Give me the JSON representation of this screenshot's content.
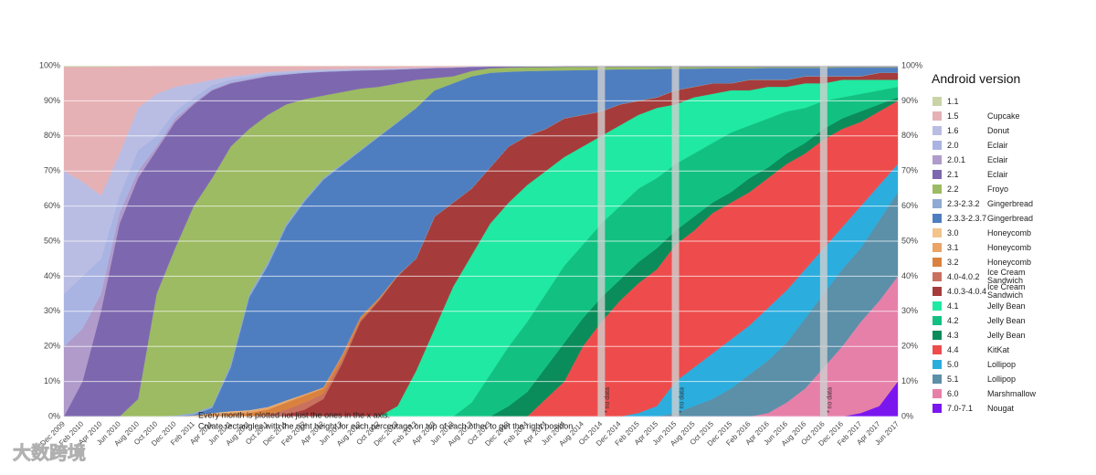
{
  "chart_data": {
    "type": "stacked_area",
    "legend_title": "Android version",
    "grid": true,
    "ylim": [
      0,
      100
    ],
    "yticks": [
      {
        "value": 0,
        "label": "0%"
      },
      {
        "value": 10,
        "label": "10%"
      },
      {
        "value": 20,
        "label": "20%"
      },
      {
        "value": 30,
        "label": "30%"
      },
      {
        "value": 40,
        "label": "40%"
      },
      {
        "value": 50,
        "label": "50%"
      },
      {
        "value": 60,
        "label": "60%"
      },
      {
        "value": 70,
        "label": "70%"
      },
      {
        "value": 80,
        "label": "80%"
      },
      {
        "value": 90,
        "label": "90%"
      },
      {
        "value": 100,
        "label": "100%"
      }
    ],
    "categories": [
      "Dec 2009",
      "Feb 2010",
      "Apr 2010",
      "Jun 2010",
      "Aug 2010",
      "Oct 2010",
      "Dec 2010",
      "Feb 2011",
      "Apr 2011",
      "Jun 2011",
      "Aug 2011",
      "Oct 2011",
      "Dec 2011",
      "Feb 2012",
      "Apr 2012",
      "Jun 2012",
      "Aug 2012",
      "Oct 2012",
      "Dec 2012",
      "Feb 2013",
      "Apr 2013",
      "Jun 2013",
      "Aug 2013",
      "Oct 2013",
      "Dec 2013",
      "Feb 2014",
      "Apr 2014",
      "Jun 2014",
      "Aug 2014",
      "Oct 2014",
      "Dec 2014",
      "Feb 2015",
      "Apr 2015",
      "Jun 2015",
      "Aug 2015",
      "Oct 2015",
      "Dec 2015",
      "Feb 2016",
      "Apr 2016",
      "Jun 2016",
      "Aug 2016",
      "Oct 2016",
      "Dec 2016",
      "Feb 2017",
      "Apr 2017",
      "Jun 2017"
    ],
    "no_data": {
      "label": "* no data",
      "categories": [
        "Oct 2014",
        "Jun 2015",
        "Oct 2016"
      ]
    },
    "notes": [
      "Every month is plotted not just the ones in the x axis.",
      "Create rectangles with the right height for each percentage on top of each other to get the right position"
    ],
    "watermark": "大数跨境",
    "series": [
      {
        "name": "1.1",
        "color": "#c9d3a6",
        "values": [
          0.3,
          0.3,
          0.3,
          0.2,
          0.1,
          0,
          0,
          0,
          0,
          0,
          0,
          0,
          0,
          0,
          0,
          0,
          0,
          0,
          0,
          0,
          0,
          0,
          0,
          0,
          0,
          0,
          0,
          0,
          0,
          0,
          0,
          0,
          0,
          0,
          0,
          0,
          0,
          0,
          0,
          0,
          0,
          0,
          0,
          0,
          0,
          0
        ]
      },
      {
        "name": "1.5",
        "codename": "Cupcake",
        "color": "#e6b1b5",
        "values": [
          29.7,
          32.7,
          36.7,
          24.8,
          11.9,
          8,
          6,
          5,
          4,
          3,
          2.5,
          1.8,
          1.5,
          1.2,
          1,
          0.9,
          0.8,
          0.8,
          0.7,
          0.6,
          0.5,
          0.4,
          0.2,
          0.1,
          0.1,
          0,
          0,
          0,
          0,
          0,
          0,
          0,
          0,
          0,
          0,
          0,
          0,
          0,
          0,
          0,
          0,
          0,
          0,
          0,
          0,
          0
        ]
      },
      {
        "name": "1.6",
        "codename": "Donut",
        "color": "#b9bde3",
        "values": [
          35,
          27,
          18,
          12,
          12,
          12,
          7,
          4,
          1.5,
          1,
          0.7,
          0.6,
          0.5,
          0.5,
          0.5,
          0.4,
          0.4,
          0.3,
          0.3,
          0.2,
          0.1,
          0.1,
          0.1,
          0.1,
          0.1,
          0.1,
          0.1,
          0.1,
          0.1,
          0.1,
          0.1,
          0.1,
          0.1,
          0.1,
          0.1,
          0.1,
          0.1,
          0.1,
          0.1,
          0.1,
          0.1,
          0.1,
          0.1,
          0.1,
          0.1,
          0.1
        ]
      },
      {
        "name": "2.0",
        "codename": "Eclair",
        "color": "#aab4e2",
        "values": [
          15,
          15,
          10,
          5,
          6,
          3,
          2,
          1.5,
          1.2,
          0.8,
          0.6,
          0.5,
          0.4,
          0.3,
          0.2,
          0.2,
          0.1,
          0.1,
          0,
          0,
          0,
          0,
          0,
          0,
          0,
          0,
          0,
          0,
          0,
          0,
          0,
          0,
          0,
          0,
          0,
          0,
          0,
          0,
          0,
          0,
          0,
          0,
          0,
          0,
          0,
          0
        ]
      },
      {
        "name": "2.0.1",
        "codename": "Eclair",
        "color": "#b09bcb",
        "values": [
          20,
          15,
          5,
          3,
          2,
          1,
          1,
          0.5,
          0.3,
          0.2,
          0.2,
          0.1,
          0.1,
          0,
          0,
          0,
          0,
          0,
          0,
          0,
          0,
          0,
          0,
          0,
          0,
          0,
          0,
          0,
          0,
          0,
          0,
          0,
          0,
          0,
          0,
          0,
          0,
          0,
          0,
          0,
          0,
          0,
          0,
          0,
          0,
          0
        ]
      },
      {
        "name": "2.1",
        "codename": "Eclair",
        "color": "#7d68af",
        "values": [
          0,
          10,
          30,
          55,
          63,
          41,
          36,
          29,
          25,
          18,
          14,
          11,
          8.5,
          7.5,
          6.8,
          6,
          5.2,
          4.8,
          4,
          3.2,
          2.9,
          2.5,
          1.2,
          0.5,
          0.3,
          0.2,
          0.2,
          0.2,
          0.2,
          0.2,
          0.2,
          0.2,
          0.2,
          0.2,
          0.2,
          0.2,
          0.2,
          0.2,
          0.2,
          0.2,
          0.2,
          0.2,
          0.2,
          0.2,
          0.2,
          0.2
        ]
      },
      {
        "name": "2.2",
        "codename": "Froyo",
        "color": "#9cbb62",
        "values": [
          0,
          0,
          0,
          0,
          5,
          35,
          47.7,
          59,
          65,
          62,
          47,
          42,
          34,
          28.5,
          23.5,
          20.5,
          17.5,
          14,
          11,
          8,
          3.5,
          2,
          1.5,
          1.3,
          1.2,
          1.1,
          1,
          1,
          0.9,
          0.8,
          0.7,
          0.7,
          0.6,
          0.5,
          0.5,
          0.4,
          0.4,
          0.4,
          0.3,
          0.3,
          0.3,
          0.3,
          0.2,
          0.2,
          0.2,
          0.2
        ]
      },
      {
        "name": "2.3-2.3.2",
        "codename": "Gingerbread",
        "color": "#8faad3",
        "values": [
          0,
          0,
          0,
          0,
          0,
          0,
          0.3,
          0.5,
          0.5,
          1,
          1,
          1,
          0.8,
          0.6,
          0.5,
          0.4,
          0.3,
          0.2,
          0.2,
          0.1,
          0,
          0,
          0,
          0,
          0,
          0,
          0,
          0,
          0,
          0,
          0,
          0,
          0,
          0,
          0,
          0,
          0,
          0,
          0,
          0,
          0,
          0,
          0,
          0,
          0,
          0
        ]
      },
      {
        "name": "2.3.3-2.3.7",
        "codename": "Gingerbread",
        "color": "#4f7ec0",
        "values": [
          0,
          0,
          0,
          0,
          0,
          0,
          0,
          0.2,
          1.5,
          12.5,
          32.2,
          40.3,
          49.6,
          55,
          59.2,
          54.2,
          47.3,
          46,
          43.6,
          42.9,
          36,
          34,
          32,
          27,
          21.3,
          18.5,
          16.6,
          13.7,
          12.8,
          11.9,
          10,
          9,
          8.1,
          6.2,
          5.2,
          4.3,
          4.3,
          3.3,
          3.4,
          3.4,
          2.4,
          2.4,
          2.5,
          2.5,
          1.5,
          1.5
        ]
      },
      {
        "name": "3.0",
        "codename": "Honeycomb",
        "color": "#f2c48a",
        "values": [
          0,
          0,
          0,
          0,
          0,
          0,
          0,
          0.1,
          0.2,
          0.2,
          0.2,
          0.1,
          0.1,
          0,
          0,
          0,
          0,
          0,
          0,
          0,
          0,
          0,
          0,
          0,
          0,
          0,
          0,
          0,
          0,
          0,
          0,
          0,
          0,
          0,
          0,
          0,
          0,
          0,
          0,
          0,
          0,
          0,
          0,
          0,
          0,
          0
        ]
      },
      {
        "name": "3.1",
        "codename": "Honeycomb",
        "color": "#e9a466",
        "values": [
          0,
          0,
          0,
          0,
          0,
          0,
          0,
          0.2,
          0.5,
          0.5,
          0.6,
          0.6,
          0.5,
          0.4,
          0.3,
          0.2,
          0.1,
          0,
          0,
          0,
          0,
          0,
          0,
          0,
          0,
          0,
          0,
          0,
          0,
          0,
          0,
          0,
          0,
          0,
          0,
          0,
          0,
          0,
          0,
          0,
          0,
          0,
          0,
          0,
          0,
          0
        ]
      },
      {
        "name": "3.2",
        "codename": "Honeycomb",
        "color": "#d9823f",
        "values": [
          0,
          0,
          0,
          0,
          0,
          0,
          0,
          0,
          0.3,
          0.8,
          1,
          1.5,
          2,
          2,
          1.5,
          1.2,
          0.8,
          0.5,
          0.2,
          0,
          0,
          0,
          0,
          0,
          0,
          0,
          0,
          0,
          0,
          0,
          0,
          0,
          0,
          0,
          0,
          0,
          0,
          0,
          0,
          0,
          0,
          0,
          0,
          0,
          0,
          0
        ]
      },
      {
        "name": "4.0-4.0.2",
        "codename": "Ice Cream Sandwich",
        "color": "#c9705f",
        "values": [
          0,
          0,
          0,
          0,
          0,
          0,
          0,
          0,
          0,
          0,
          0,
          0.5,
          1.5,
          2,
          1.5,
          1,
          0.5,
          0.3,
          0,
          0,
          0,
          0,
          0,
          0,
          0,
          0,
          0,
          0,
          0,
          0,
          0,
          0,
          0,
          0,
          0,
          0,
          0,
          0,
          0,
          0,
          0,
          0,
          0,
          0,
          0,
          0
        ]
      },
      {
        "name": "4.0.3-4.0.4",
        "codename": "Ice Cream Sandwich",
        "color": "#a53c3b",
        "values": [
          0,
          0,
          0,
          0,
          0,
          0,
          0,
          0,
          0,
          0,
          0,
          0,
          0.5,
          2,
          5,
          15,
          27,
          33,
          37,
          32,
          32,
          24,
          19,
          16,
          16,
          14,
          12,
          11,
          9,
          7,
          6,
          4,
          3,
          4,
          3,
          3,
          2,
          3,
          2,
          2,
          2,
          2,
          1,
          1,
          2,
          2
        ]
      },
      {
        "name": "4.1",
        "codename": "Jelly Bean",
        "color": "#1fe9a2",
        "values": [
          0,
          0,
          0,
          0,
          0,
          0,
          0,
          0,
          0,
          0,
          0,
          0,
          0,
          0,
          0,
          0,
          0,
          0,
          3,
          13,
          25,
          37,
          42,
          43,
          41,
          39,
          35,
          31,
          28,
          25,
          23,
          21,
          20,
          17,
          16,
          14,
          12,
          10,
          9,
          7,
          7,
          5,
          5,
          4,
          3,
          2
        ]
      },
      {
        "name": "4.2",
        "codename": "Jelly Bean",
        "color": "#12c182",
        "values": [
          0,
          0,
          0,
          0,
          0,
          0,
          0,
          0,
          0,
          0,
          0,
          0,
          0,
          0,
          0,
          0,
          0,
          0,
          0,
          0,
          0,
          0,
          4,
          12,
          17,
          20,
          21,
          22,
          21,
          21,
          21,
          21,
          20,
          19,
          18,
          17,
          17,
          15,
          14,
          12,
          10,
          8,
          6,
          5,
          4,
          3
        ]
      },
      {
        "name": "4.3",
        "codename": "Jelly Bean",
        "color": "#0b8c5b",
        "values": [
          0,
          0,
          0,
          0,
          0,
          0,
          0,
          0,
          0,
          0,
          0,
          0,
          0,
          0,
          0,
          0,
          0,
          0,
          0,
          0,
          0,
          0,
          0,
          0,
          3,
          7,
          9,
          11,
          8,
          7,
          6,
          6,
          6,
          4,
          4,
          3,
          3,
          4,
          3,
          3,
          3,
          3,
          3,
          3,
          2,
          1
        ]
      },
      {
        "name": "4.4",
        "codename": "KitKat",
        "color": "#ee4c4c",
        "values": [
          0,
          0,
          0,
          0,
          0,
          0,
          0,
          0,
          0,
          0,
          0,
          0,
          0,
          0,
          0,
          0,
          0,
          0,
          0,
          0,
          0,
          0,
          0,
          0,
          0,
          0,
          5,
          10,
          20,
          27,
          33,
          37,
          39,
          39,
          39,
          40,
          39,
          38,
          37,
          36,
          33,
          31,
          28,
          24,
          21,
          18
        ]
      },
      {
        "name": "5.0",
        "codename": "Lollipop",
        "color": "#2badde",
        "values": [
          0,
          0,
          0,
          0,
          0,
          0,
          0,
          0,
          0,
          0,
          0,
          0,
          0,
          0,
          0,
          0,
          0,
          0,
          0,
          0,
          0,
          0,
          0,
          0,
          0,
          0,
          0,
          0,
          0,
          0,
          0,
          1,
          3,
          9,
          11,
          13,
          14,
          14,
          15,
          15,
          14,
          13,
          12,
          12,
          10,
          8
        ]
      },
      {
        "name": "5.1",
        "codename": "Lollipop",
        "color": "#5c8fa8",
        "values": [
          0,
          0,
          0,
          0,
          0,
          0,
          0,
          0,
          0,
          0,
          0,
          0,
          0,
          0,
          0,
          0,
          0,
          0,
          0,
          0,
          0,
          0,
          0,
          0,
          0,
          0,
          0,
          0,
          0,
          0,
          0,
          0,
          0,
          1,
          3,
          5,
          8,
          12,
          15,
          17,
          20,
          21,
          22,
          21,
          23,
          24
        ]
      },
      {
        "name": "6.0",
        "codename": "Marshmallow",
        "color": "#e680a9",
        "values": [
          0,
          0,
          0,
          0,
          0,
          0,
          0,
          0,
          0,
          0,
          0,
          0,
          0,
          0,
          0,
          0,
          0,
          0,
          0,
          0,
          0,
          0,
          0,
          0,
          0,
          0,
          0,
          0,
          0,
          0,
          0,
          0,
          0,
          0,
          0,
          0,
          0,
          0,
          1,
          4,
          8,
          14,
          20,
          26,
          30,
          30
        ]
      },
      {
        "name": "7.0-7.1",
        "codename": "Nougat",
        "color": "#7a17ef",
        "values": [
          0,
          0,
          0,
          0,
          0,
          0,
          0,
          0,
          0,
          0,
          0,
          0,
          0,
          0,
          0,
          0,
          0,
          0,
          0,
          0,
          0,
          0,
          0,
          0,
          0,
          0,
          0,
          0,
          0,
          0,
          0,
          0,
          0,
          0,
          0,
          0,
          0,
          0,
          0,
          0,
          0,
          0,
          0,
          1,
          3,
          10
        ]
      }
    ]
  }
}
